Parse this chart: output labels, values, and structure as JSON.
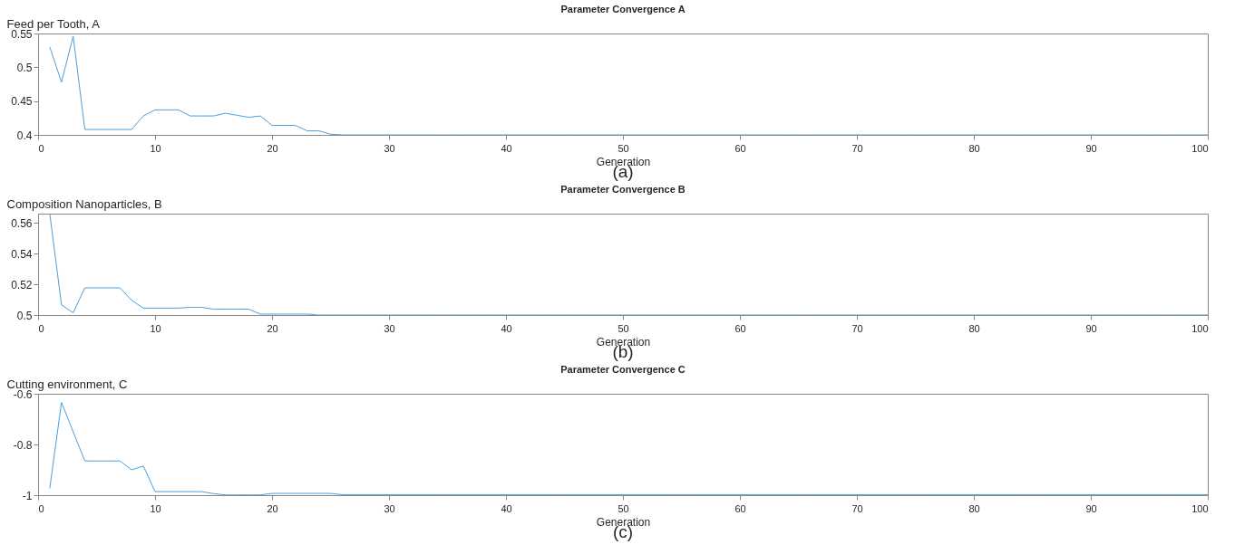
{
  "chart_data": [
    {
      "type": "line",
      "title": "Parameter Convergence A",
      "xlabel": "Generation",
      "ylabel": "Feed per Tooth, A",
      "annotations": [
        "(a)"
      ],
      "grid": false,
      "marker": "none",
      "line_style": "solid",
      "xlim": [
        0,
        100
      ],
      "xticks": [
        0,
        10,
        20,
        30,
        40,
        50,
        60,
        70,
        80,
        90,
        100
      ],
      "ylim": [
        0.4,
        0.55
      ],
      "yticks": [
        0.4,
        0.45,
        0.5,
        0.55
      ],
      "x": [
        1,
        2,
        3,
        4,
        5,
        6,
        7,
        8,
        9,
        10,
        11,
        12,
        13,
        14,
        15,
        16,
        17,
        18,
        19,
        20,
        21,
        22,
        23,
        24,
        25,
        26,
        27,
        28,
        29,
        30,
        31,
        32,
        33,
        34,
        35,
        36,
        37,
        38,
        39,
        40,
        41,
        42,
        43,
        44,
        45,
        46,
        47,
        48,
        49,
        50,
        51,
        52,
        53,
        54,
        55,
        56,
        57,
        58,
        59,
        60,
        61,
        62,
        63,
        64,
        65,
        66,
        67,
        68,
        69,
        70,
        71,
        72,
        73,
        74,
        75,
        76,
        77,
        78,
        79,
        80,
        81,
        82,
        83,
        84,
        85,
        86,
        87,
        88,
        89,
        90,
        91,
        92,
        93,
        94,
        95,
        96,
        97,
        98,
        99,
        100
      ],
      "series": [
        {
          "color": "#4d9fdc",
          "values": [
            0.53,
            0.478,
            0.546,
            0.408,
            0.408,
            0.408,
            0.408,
            0.408,
            0.428,
            0.437,
            0.437,
            0.437,
            0.428,
            0.428,
            0.428,
            0.432,
            0.429,
            0.426,
            0.428,
            0.414,
            0.414,
            0.414,
            0.406,
            0.406,
            0.401,
            0.4,
            0.4,
            0.4,
            0.4,
            0.4,
            0.4,
            0.4,
            0.4,
            0.4,
            0.4,
            0.4,
            0.4,
            0.4,
            0.4,
            0.4,
            0.4,
            0.4,
            0.4,
            0.4,
            0.4,
            0.4,
            0.4,
            0.4,
            0.4,
            0.4,
            0.4,
            0.4,
            0.4,
            0.4,
            0.4,
            0.4,
            0.4,
            0.4,
            0.4,
            0.4,
            0.4,
            0.4,
            0.4,
            0.4,
            0.4,
            0.4,
            0.4,
            0.4,
            0.4,
            0.4,
            0.4,
            0.4,
            0.4,
            0.4,
            0.4,
            0.4,
            0.4,
            0.4,
            0.4,
            0.4,
            0.4,
            0.4,
            0.4,
            0.4,
            0.4,
            0.4,
            0.4,
            0.4,
            0.4,
            0.4,
            0.4,
            0.4,
            0.4,
            0.4,
            0.4,
            0.4,
            0.4,
            0.4,
            0.4,
            0.4
          ]
        }
      ]
    },
    {
      "type": "line",
      "title": "Parameter Convergence B",
      "xlabel": "Generation",
      "ylabel": "Composition Nanoparticles, B",
      "annotations": [
        "(b)"
      ],
      "grid": false,
      "marker": "none",
      "line_style": "solid",
      "xlim": [
        0,
        100
      ],
      "xticks": [
        0,
        10,
        20,
        30,
        40,
        50,
        60,
        70,
        80,
        90,
        100
      ],
      "ylim": [
        0.5,
        0.566
      ],
      "yticks": [
        0.5,
        0.52,
        0.54,
        0.56
      ],
      "x": [
        1,
        2,
        3,
        4,
        5,
        6,
        7,
        8,
        9,
        10,
        11,
        12,
        13,
        14,
        15,
        16,
        17,
        18,
        19,
        20,
        21,
        22,
        23,
        24,
        25,
        26,
        27,
        28,
        29,
        30,
        31,
        32,
        33,
        34,
        35,
        36,
        37,
        38,
        39,
        40,
        41,
        42,
        43,
        44,
        45,
        46,
        47,
        48,
        49,
        50,
        51,
        52,
        53,
        54,
        55,
        56,
        57,
        58,
        59,
        60,
        61,
        62,
        63,
        64,
        65,
        66,
        67,
        68,
        69,
        70,
        71,
        72,
        73,
        74,
        75,
        76,
        77,
        78,
        79,
        80,
        81,
        82,
        83,
        84,
        85,
        86,
        87,
        88,
        89,
        90,
        91,
        92,
        93,
        94,
        95,
        96,
        97,
        98,
        99,
        100
      ],
      "series": [
        {
          "color": "#4d9fdc",
          "values": [
            0.566,
            0.5066,
            0.5015,
            0.5177,
            0.5177,
            0.5177,
            0.5177,
            0.5096,
            0.5045,
            0.5045,
            0.5045,
            0.5045,
            0.505,
            0.505,
            0.5038,
            0.5038,
            0.5038,
            0.5038,
            0.5006,
            0.5006,
            0.5006,
            0.5006,
            0.5006,
            0.5,
            0.5,
            0.5,
            0.5,
            0.5,
            0.5,
            0.5,
            0.5,
            0.5,
            0.5,
            0.5,
            0.5,
            0.5,
            0.5,
            0.5,
            0.5,
            0.5,
            0.5,
            0.5,
            0.5,
            0.5,
            0.5,
            0.5,
            0.5,
            0.5,
            0.5,
            0.5,
            0.5,
            0.5,
            0.5,
            0.5,
            0.5,
            0.5,
            0.5,
            0.5,
            0.5,
            0.5,
            0.5,
            0.5,
            0.5,
            0.5,
            0.5,
            0.5,
            0.5,
            0.5,
            0.5,
            0.5,
            0.5,
            0.5,
            0.5,
            0.5,
            0.5,
            0.5,
            0.5,
            0.5,
            0.5,
            0.5,
            0.5,
            0.5,
            0.5,
            0.5,
            0.5,
            0.5,
            0.5,
            0.5,
            0.5,
            0.5,
            0.5,
            0.5,
            0.5,
            0.5,
            0.5,
            0.5,
            0.5,
            0.5,
            0.5,
            0.5
          ]
        }
      ]
    },
    {
      "type": "line",
      "title": "Parameter Convergence C",
      "xlabel": "Generation",
      "ylabel": "Cutting environment, C",
      "annotations": [
        "(c)"
      ],
      "grid": false,
      "marker": "none",
      "line_style": "solid",
      "xlim": [
        0,
        100
      ],
      "xticks": [
        0,
        10,
        20,
        30,
        40,
        50,
        60,
        70,
        80,
        90,
        100
      ],
      "ylim": [
        -1,
        -0.6
      ],
      "yticks": [
        -1,
        -0.8,
        -0.6
      ],
      "x": [
        1,
        2,
        3,
        4,
        5,
        6,
        7,
        8,
        9,
        10,
        11,
        12,
        13,
        14,
        15,
        16,
        17,
        18,
        19,
        20,
        21,
        22,
        23,
        24,
        25,
        26,
        27,
        28,
        29,
        30,
        31,
        32,
        33,
        34,
        35,
        36,
        37,
        38,
        39,
        40,
        41,
        42,
        43,
        44,
        45,
        46,
        47,
        48,
        49,
        50,
        51,
        52,
        53,
        54,
        55,
        56,
        57,
        58,
        59,
        60,
        61,
        62,
        63,
        64,
        65,
        66,
        67,
        68,
        69,
        70,
        71,
        72,
        73,
        74,
        75,
        76,
        77,
        78,
        79,
        80,
        81,
        82,
        83,
        84,
        85,
        86,
        87,
        88,
        89,
        90,
        91,
        92,
        93,
        94,
        95,
        96,
        97,
        98,
        99,
        100
      ],
      "series": [
        {
          "color": "#4d9fdc",
          "values": [
            -0.973,
            -0.634,
            -0.75,
            -0.865,
            -0.865,
            -0.865,
            -0.865,
            -0.9,
            -0.885,
            -0.986,
            -0.986,
            -0.986,
            -0.986,
            -0.986,
            -0.994,
            -0.999,
            -0.999,
            -0.999,
            -0.999,
            -0.993,
            -0.993,
            -0.993,
            -0.993,
            -0.993,
            -0.993,
            -0.998,
            -0.998,
            -0.998,
            -0.998,
            -0.998,
            -0.998,
            -0.998,
            -0.998,
            -0.998,
            -0.998,
            -0.998,
            -0.998,
            -0.998,
            -0.998,
            -0.998,
            -0.998,
            -0.998,
            -0.998,
            -0.998,
            -0.998,
            -0.998,
            -0.998,
            -0.998,
            -0.998,
            -0.998,
            -0.998,
            -0.998,
            -0.998,
            -0.998,
            -0.998,
            -0.998,
            -0.998,
            -0.998,
            -0.998,
            -0.998,
            -0.998,
            -0.998,
            -0.998,
            -0.998,
            -0.998,
            -0.998,
            -0.998,
            -0.998,
            -0.998,
            -0.998,
            -0.998,
            -0.998,
            -0.998,
            -0.998,
            -0.998,
            -0.998,
            -0.998,
            -0.998,
            -0.998,
            -0.998,
            -0.998,
            -0.998,
            -0.998,
            -0.998,
            -0.998,
            -0.998,
            -0.998,
            -0.998,
            -0.998,
            -0.998,
            -0.998,
            -0.998,
            -0.998,
            -0.998,
            -0.998,
            -0.998,
            -0.998,
            -0.998,
            -0.998,
            -0.998
          ]
        }
      ]
    }
  ]
}
